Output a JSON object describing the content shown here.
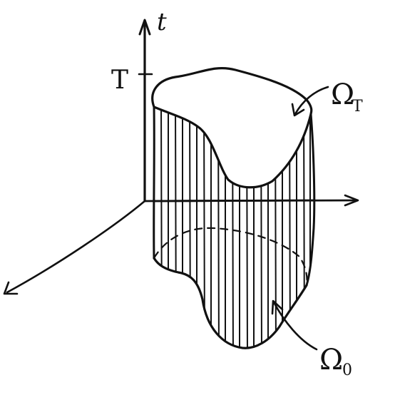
{
  "labels": {
    "time_axis": "t",
    "final_time": "T",
    "top_surface": "Ω",
    "top_surface_sub": "T",
    "bottom_surface": "Ω",
    "bottom_surface_sub": "0"
  },
  "colors": {
    "ink": "#111111",
    "background": "#ffffff"
  }
}
